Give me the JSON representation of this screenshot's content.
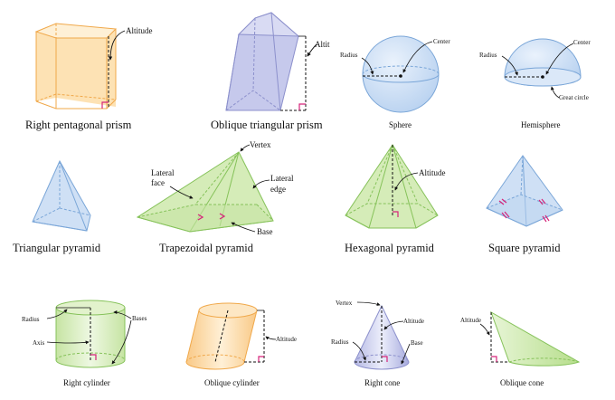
{
  "captions": {
    "right_pentagonal_prism": "Right pentagonal prism",
    "oblique_triangular_prism": "Oblique triangular prism",
    "sphere": "Sphere",
    "hemisphere": "Hemisphere",
    "triangular_pyramid": "Triangular pyramid",
    "trapezoidal_pyramid": "Trapezoidal pyramid",
    "hexagonal_pyramid": "Hexagonal pyramid",
    "square_pyramid": "Square pyramid",
    "right_cylinder": "Right cylinder",
    "oblique_cylinder": "Oblique cylinder",
    "right_cone": "Right cone",
    "oblique_cone": "Oblique cone"
  },
  "labels": {
    "altitude": "Altitude",
    "altit": "Altit",
    "radius": "Radius",
    "center": "Center",
    "great_circle": "Great circle",
    "vertex": "Vertex",
    "lateral_face_line1": "Lateral",
    "lateral_face_line2": "face",
    "lateral_edge_line1": "Lateral",
    "lateral_edge_line2": "edge",
    "base": "Base",
    "bases": "Bases",
    "axis": "Axis"
  },
  "colors": {
    "orange_fill": "#fde2b4",
    "orange_stroke": "#f0a84a",
    "lavender_fill": "#c6c9ec",
    "lavender_stroke": "#8c90cc",
    "blue_fill": "#cfe0f5",
    "blue_stroke": "#7aa6d8",
    "green_fill": "#d5ecb8",
    "green_stroke": "#86c25a",
    "magenta": "#d6247a",
    "dark": "#111111"
  }
}
